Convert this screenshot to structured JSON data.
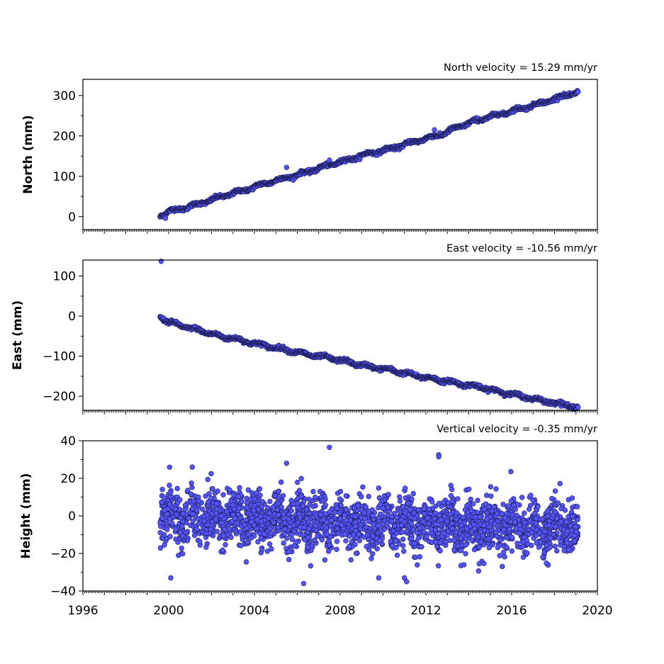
{
  "colors": {
    "marker_fill": "#5555ff",
    "marker_edge": "#1a1a4a"
  },
  "chart_data": [
    {
      "type": "scatter",
      "title": "North velocity = 15.29 mm/yr",
      "ylabel": "North (mm)",
      "xlim": [
        1996,
        2020
      ],
      "ylim": [
        -32,
        340
      ],
      "yticks": [
        0,
        100,
        200,
        300
      ],
      "xticks": [],
      "velocity_mm_per_yr": 15.29,
      "x": [
        1999.6,
        2000.0,
        2000.5,
        2001.0,
        2001.5,
        2002.0,
        2002.5,
        2003.0,
        2003.5,
        2004.0,
        2004.5,
        2005.0,
        2005.5,
        2006.0,
        2006.5,
        2007.0,
        2007.5,
        2008.0,
        2008.5,
        2009.0,
        2009.5,
        2010.0,
        2010.5,
        2011.0,
        2011.5,
        2012.0,
        2012.5,
        2013.0,
        2013.5,
        2014.0,
        2014.5,
        2015.0,
        2015.5,
        2016.0,
        2016.5,
        2017.0,
        2017.5,
        2018.0,
        2018.5,
        2019.1
      ],
      "y": [
        2,
        14,
        18,
        26,
        33,
        42,
        50,
        58,
        65,
        74,
        82,
        90,
        96,
        104,
        111,
        120,
        128,
        136,
        142,
        152,
        158,
        164,
        170,
        179,
        186,
        194,
        200,
        210,
        222,
        232,
        240,
        248,
        254,
        262,
        268,
        276,
        283,
        292,
        300,
        308
      ],
      "outliers": [
        [
          2005.5,
          122
        ],
        [
          2007.5,
          140
        ],
        [
          2012.4,
          215
        ],
        [
          1999.85,
          -4
        ]
      ]
    },
    {
      "type": "scatter",
      "title": "East velocity = -10.56 mm/yr",
      "ylabel": "East (mm)",
      "xlim": [
        1996,
        2020
      ],
      "ylim": [
        -235,
        140
      ],
      "yticks": [
        100,
        0,
        -100,
        -200
      ],
      "ytick_labels": [
        "100",
        "0",
        "−100",
        "−200"
      ],
      "xticks": [],
      "velocity_mm_per_yr": -10.56,
      "x": [
        1999.6,
        2000.0,
        2000.5,
        2001.0,
        2001.5,
        2002.0,
        2002.5,
        2003.0,
        2003.5,
        2004.0,
        2004.5,
        2005.0,
        2005.5,
        2006.0,
        2006.5,
        2007.0,
        2007.5,
        2008.0,
        2008.5,
        2009.0,
        2009.5,
        2010.0,
        2010.5,
        2011.0,
        2011.5,
        2012.0,
        2012.5,
        2013.0,
        2013.5,
        2014.0,
        2014.5,
        2015.0,
        2015.5,
        2016.0,
        2016.5,
        2017.0,
        2017.5,
        2018.0,
        2018.5,
        2019.1
      ],
      "y": [
        0,
        -15,
        -22,
        -30,
        -36,
        -44,
        -52,
        -55,
        -62,
        -68,
        -73,
        -79,
        -84,
        -90,
        -96,
        -100,
        -104,
        -110,
        -116,
        -122,
        -127,
        -131,
        -136,
        -142,
        -148,
        -153,
        -158,
        -162,
        -168,
        -172,
        -177,
        -183,
        -189,
        -195,
        -200,
        -206,
        -211,
        -216,
        -221,
        -228
      ],
      "outliers": [
        [
          1999.65,
          137
        ]
      ]
    },
    {
      "type": "scatter",
      "title": "Vertical velocity = -0.35 mm/yr",
      "ylabel": "Height (mm)",
      "xlim": [
        1996,
        2020
      ],
      "ylim": [
        -40,
        40
      ],
      "yticks": [
        40,
        20,
        0,
        -20,
        -40
      ],
      "ytick_labels": [
        "40",
        "20",
        "0",
        "−20",
        "−40"
      ],
      "xticks": [
        1996,
        2000,
        2004,
        2008,
        2012,
        2016,
        2020
      ],
      "xtick_labels": [
        "1996",
        "2000",
        "2004",
        "2008",
        "2012",
        "2016",
        "2020"
      ],
      "velocity_mm_per_yr": -0.35,
      "x_start": 1999.6,
      "x_end": 2019.1,
      "scatter_sd_mm": 8,
      "outliers": [
        [
          2007.5,
          36.5
        ],
        [
          2005.5,
          28
        ],
        [
          2012.6,
          32.5
        ],
        [
          2012.6,
          31.5
        ],
        [
          2011.1,
          -35
        ],
        [
          2006.3,
          -36
        ],
        [
          2000.1,
          -33
        ],
        [
          2011.0,
          -33
        ],
        [
          2009.8,
          -33
        ]
      ]
    }
  ]
}
